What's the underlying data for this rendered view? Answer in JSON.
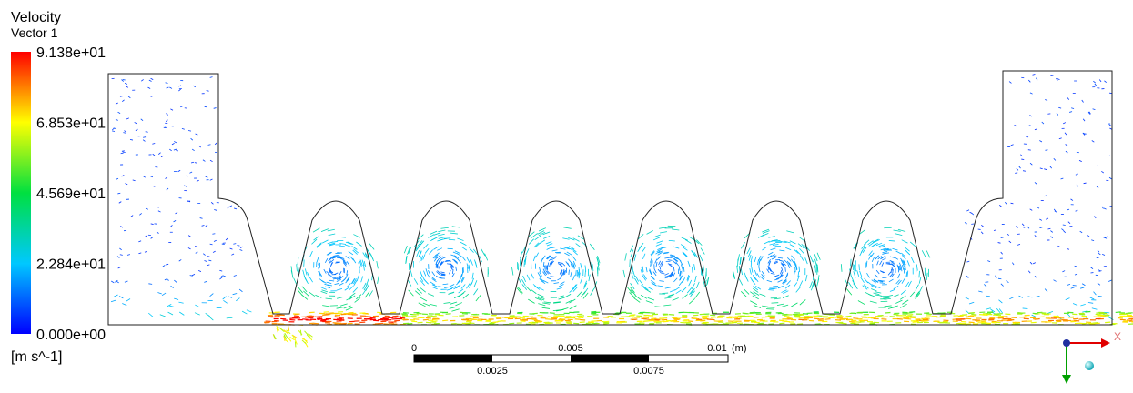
{
  "legend": {
    "title": "Velocity",
    "subtitle": "Vector 1",
    "ticks": [
      "9.138e+01",
      "6.853e+01",
      "4.569e+01",
      "2.284e+01",
      "0.000e+00"
    ],
    "units": "[m s^-1]"
  },
  "scale_bar": {
    "top_labels": [
      "0",
      "0.005",
      "0.01"
    ],
    "unit": "(m)",
    "bottom_labels": [
      "0.0025",
      "0.0075"
    ]
  },
  "triad": {
    "x_label": "X"
  }
}
